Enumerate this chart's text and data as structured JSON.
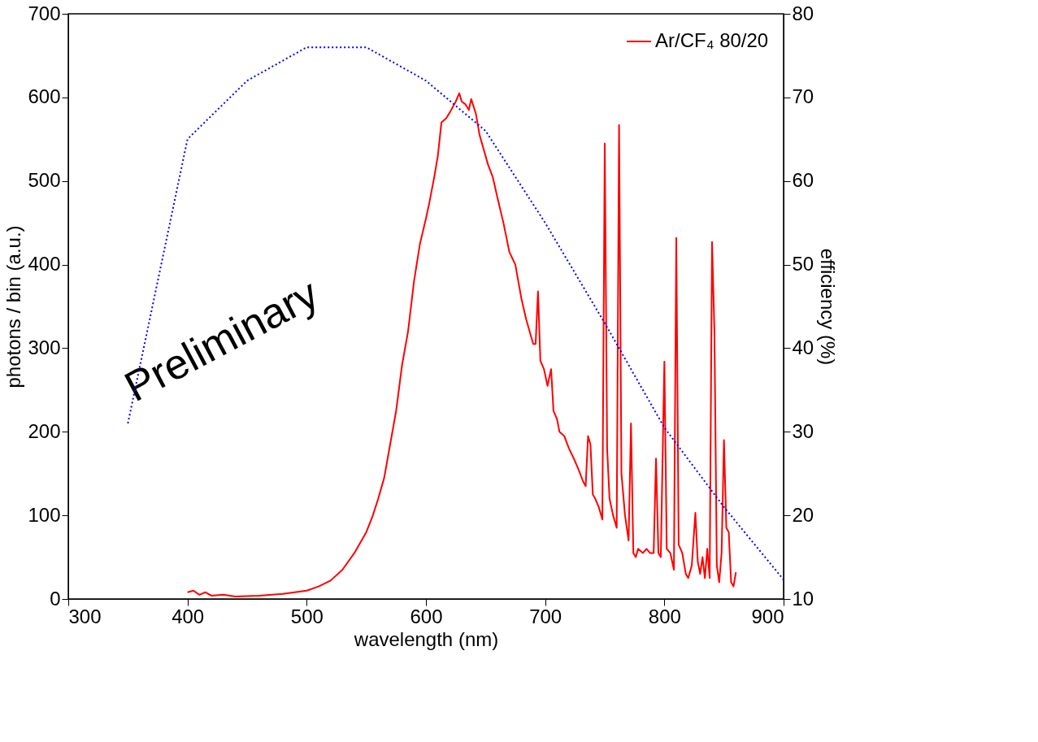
{
  "chart_data": {
    "type": "line",
    "xlabel": "wavelength (nm)",
    "ylabel": "photons / bin (a.u.)",
    "y2label": "efficiency (%)",
    "xlim": [
      300,
      900
    ],
    "xticks": [
      300,
      400,
      500,
      600,
      700,
      800,
      900
    ],
    "ylim": [
      0,
      700
    ],
    "yticks": [
      0,
      100,
      200,
      300,
      400,
      500,
      600,
      700
    ],
    "y2lim": [
      10,
      80
    ],
    "y2ticks": [
      10,
      20,
      30,
      40,
      50,
      60,
      70,
      80
    ],
    "grid": false,
    "legend": "top right",
    "marker": "none",
    "annotations": [
      "Preliminary"
    ],
    "series": [
      {
        "name": "Ar/CF₄ 80/20",
        "color": "#ff0000",
        "line_style": "solid",
        "x": [
          400,
          405,
          410,
          415,
          420,
          430,
          440,
          460,
          480,
          490,
          500,
          510,
          520,
          530,
          540,
          550,
          555,
          560,
          565,
          570,
          575,
          580,
          585,
          590,
          595,
          600,
          603,
          607,
          610,
          613,
          617,
          620,
          625,
          628,
          630,
          633,
          636,
          638,
          642,
          645,
          648,
          652,
          656,
          660,
          665,
          670,
          675,
          680,
          684,
          688,
          690,
          692,
          694,
          696,
          699,
          702,
          705,
          707,
          710,
          712,
          716,
          720,
          725,
          728,
          732,
          734,
          736,
          738,
          740,
          742,
          745,
          748,
          750,
          752,
          754,
          757,
          760,
          762,
          764,
          767,
          770,
          772,
          774,
          776,
          778,
          782,
          785,
          788,
          791,
          793,
          795,
          797,
          800,
          802,
          805,
          808,
          810,
          812,
          815,
          818,
          820,
          823,
          826,
          828,
          830,
          832,
          834,
          836,
          838,
          840,
          842,
          844,
          846,
          848,
          850,
          852,
          854,
          856,
          858,
          860
        ],
        "values": [
          8,
          10,
          5,
          8,
          4,
          5,
          3,
          4,
          6,
          8,
          10,
          15,
          22,
          35,
          55,
          80,
          98,
          120,
          145,
          185,
          225,
          280,
          320,
          380,
          425,
          455,
          475,
          505,
          530,
          570,
          575,
          582,
          595,
          605,
          595,
          592,
          585,
          598,
          580,
          555,
          540,
          520,
          505,
          480,
          450,
          415,
          400,
          360,
          335,
          315,
          305,
          305,
          368,
          285,
          275,
          255,
          275,
          225,
          215,
          200,
          195,
          180,
          165,
          155,
          140,
          135,
          195,
          185,
          125,
          120,
          110,
          95,
          545,
          180,
          120,
          100,
          85,
          567,
          150,
          100,
          70,
          210,
          55,
          50,
          60,
          55,
          60,
          55,
          55,
          168,
          55,
          50,
          284,
          60,
          55,
          35,
          432,
          65,
          55,
          30,
          25,
          40,
          103,
          45,
          30,
          50,
          25,
          60,
          25,
          427,
          320,
          40,
          20,
          55,
          190,
          85,
          80,
          20,
          15,
          32
        ]
      },
      {
        "color": "#0000ff",
        "line_style": "dotted",
        "axis": "y2",
        "x": [
          350,
          400,
          450,
          500,
          550,
          600,
          650,
          700,
          750,
          800,
          850,
          900
        ],
        "values": [
          31,
          65,
          72,
          76,
          76,
          72,
          66,
          55,
          43,
          30.5,
          21,
          12.3
        ]
      }
    ]
  }
}
